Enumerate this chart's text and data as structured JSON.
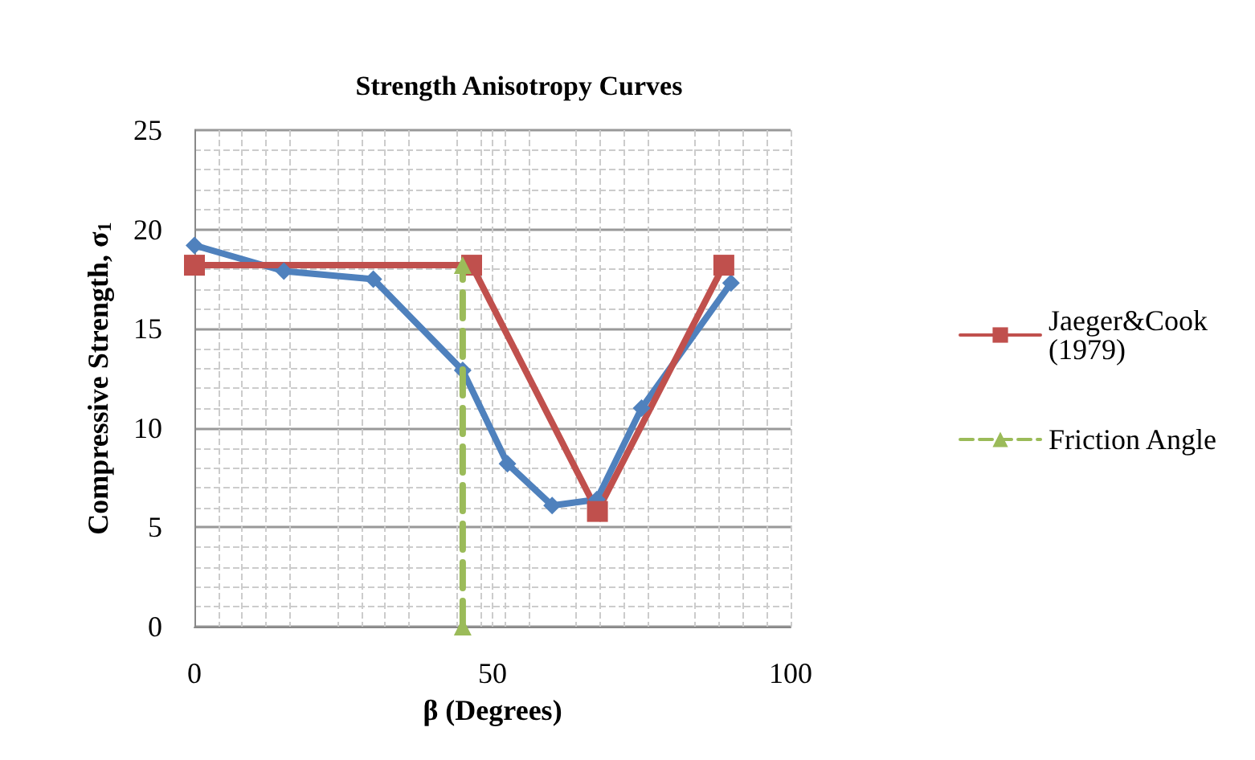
{
  "chart_data": {
    "type": "line",
    "title": "Strength Anisotropy Curves",
    "xlabel": "β (Degrees)",
    "ylabel": "Compressive Strength, σ$_{1}$",
    "xlim": [
      0,
      100
    ],
    "xticks": [
      0,
      50,
      100
    ],
    "ylim": [
      0,
      25
    ],
    "yticks": [
      0,
      5,
      10,
      15,
      20,
      25
    ],
    "grid": true,
    "legend": "right",
    "series": [
      {
        "color": "#4f81bd",
        "marker": "diamond",
        "x": [
          0,
          15,
          30,
          45,
          52.5,
          60,
          67.5,
          75,
          90
        ],
        "values": [
          19.2,
          17.9,
          17.5,
          12.9,
          8.2,
          6.1,
          6.4,
          11,
          17.3
        ]
      },
      {
        "name": "Jaeger&Cook (1979)",
        "color": "#c0504d",
        "marker": "square",
        "x": [
          0,
          46.5,
          67.6,
          88.8
        ],
        "values": [
          18.2,
          18.2,
          5.8,
          18.2
        ]
      },
      {
        "name": "Friction Angle",
        "color": "#9bbb59",
        "marker": "triangle",
        "line_style": "dashed",
        "x": [
          45,
          45
        ],
        "values": [
          0,
          18.2
        ]
      }
    ]
  }
}
